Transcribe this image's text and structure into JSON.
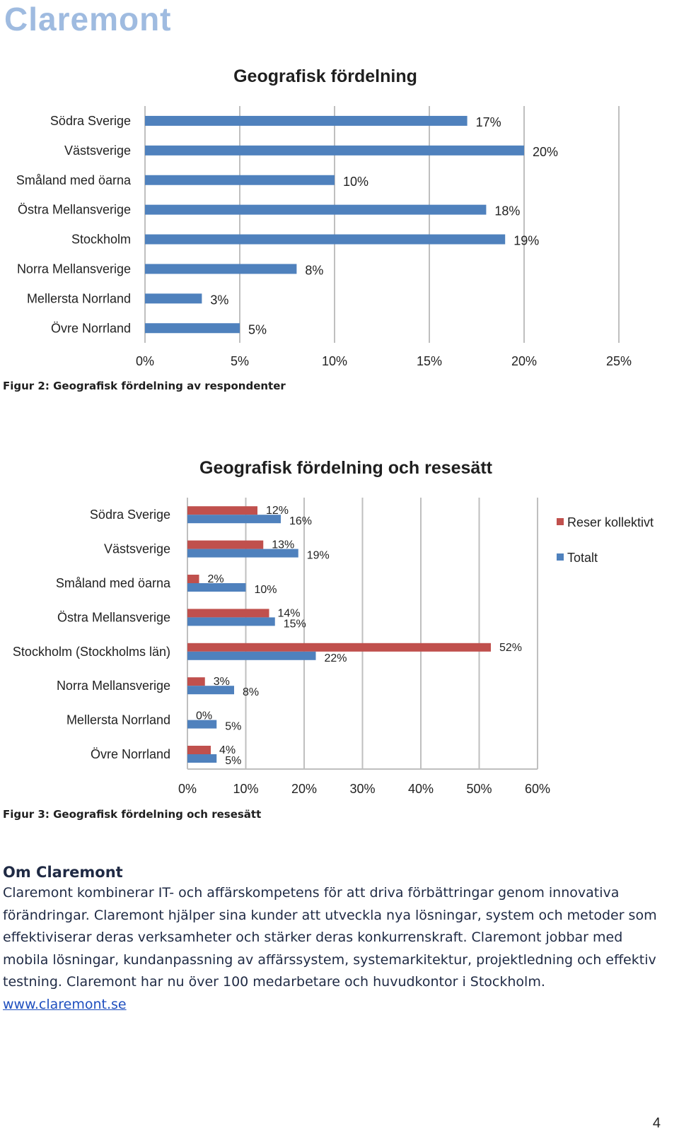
{
  "logo_text": "Claremont",
  "chart_data": [
    {
      "type": "bar",
      "orientation": "horizontal",
      "title": "Geografisk fördelning",
      "categories": [
        "Södra Sverige",
        "Västsverige",
        "Småland med öarna",
        "Östra Mellansverige",
        "Stockholm",
        "Norra Mellansverige",
        "Mellersta Norrland",
        "Övre Norrland"
      ],
      "values": [
        17,
        20,
        10,
        18,
        19,
        8,
        3,
        5
      ],
      "value_labels": [
        "17%",
        "20%",
        "10%",
        "18%",
        "19%",
        "8%",
        "3%",
        "5%"
      ],
      "xlim": [
        0,
        25
      ],
      "xticks": [
        "0%",
        "5%",
        "10%",
        "15%",
        "20%",
        "25%"
      ],
      "grid": true,
      "colors": [
        "#4f81bd"
      ]
    },
    {
      "type": "bar",
      "orientation": "horizontal",
      "title": "Geografisk fördelning och resesätt",
      "categories": [
        "Södra Sverige",
        "Västsverige",
        "Småland med öarna",
        "Östra Mellansverige",
        "Stockholm (Stockholms län)",
        "Norra Mellansverige",
        "Mellersta Norrland",
        "Övre Norrland"
      ],
      "series": [
        {
          "name": "Reser kollektivt",
          "values": [
            12,
            13,
            2,
            14,
            52,
            3,
            0,
            4
          ],
          "labels": [
            "12%",
            "13%",
            "2%",
            "14%",
            "52%",
            "3%",
            "0%",
            "4%"
          ],
          "color": "#c0504d"
        },
        {
          "name": "Totalt",
          "values": [
            16,
            19,
            10,
            15,
            22,
            8,
            5,
            5
          ],
          "labels": [
            "16%",
            "19%",
            "10%",
            "15%",
            "22%",
            "8%",
            "5%",
            "5%"
          ],
          "color": "#4f81bd"
        }
      ],
      "xlim": [
        0,
        60
      ],
      "xticks": [
        "0%",
        "10%",
        "20%",
        "30%",
        "40%",
        "50%",
        "60%"
      ],
      "grid": true,
      "legend": "right"
    }
  ],
  "captions": {
    "fig2": "Figur 2: Geografisk fördelning av respondenter",
    "fig3": "Figur 3: Geografisk fördelning och resesätt"
  },
  "about": {
    "heading": "Om Claremont",
    "text": "Claremont kombinerar IT- och affärskompetens för att driva förbättringar genom innovativa förändringar. Claremont hjälper sina kunder att utveckla nya lösningar, system och metoder som effektiviserar deras verksamheter och stärker deras konkurrenskraft. Claremont jobbar med mobila lösningar, kundanpassning av affärssystem, systemarkitektur, projektledning och effektiv testning. Claremont har nu över 100 medarbetare och huvudkontor i Stockholm.",
    "link": "www.claremont.se"
  },
  "page_number": "4"
}
